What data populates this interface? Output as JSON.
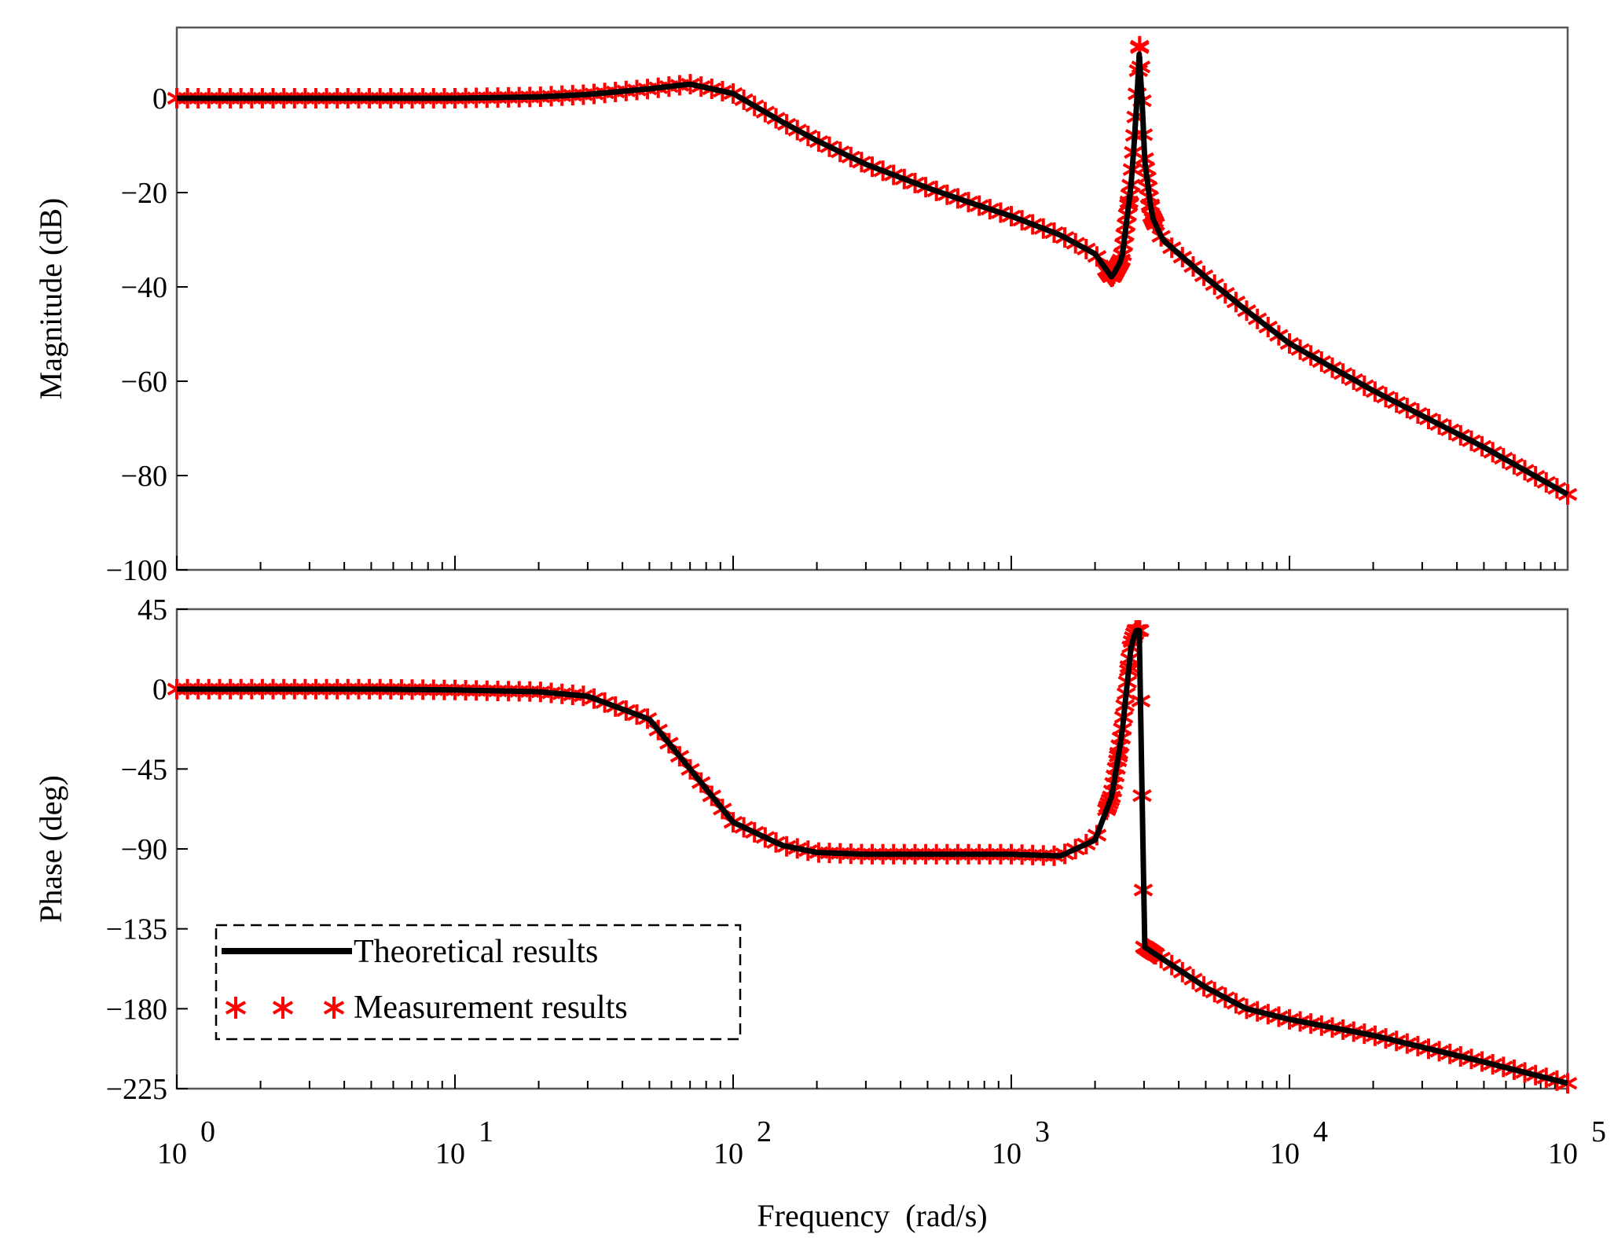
{
  "chart_data": {
    "type": "line",
    "title": "",
    "xlabel": "Frequency  (rad/s)",
    "xscale": "log",
    "xlim": [
      1,
      100000
    ],
    "x_ticks": [
      {
        "base": "10",
        "exp": "0"
      },
      {
        "base": "10",
        "exp": "1"
      },
      {
        "base": "10",
        "exp": "2"
      },
      {
        "base": "10",
        "exp": "3"
      },
      {
        "base": "10",
        "exp": "4"
      },
      {
        "base": "10",
        "exp": "5"
      }
    ],
    "legend": {
      "placement": "bottom-left",
      "entries": [
        "Theoretical results",
        "Measurement results"
      ]
    },
    "colors": {
      "theoretical": "#000000",
      "measured": "#ff0000"
    },
    "x": [
      1,
      2,
      5,
      10,
      20,
      30,
      50,
      70,
      100,
      150,
      200,
      300,
      500,
      700,
      1000,
      1500,
      2000,
      2300,
      2500,
      2700,
      2800,
      2900,
      3000,
      3200,
      3500,
      5000,
      7000,
      10000,
      20000,
      50000,
      100000
    ],
    "panels": [
      {
        "name": "magnitude",
        "ylabel": "Magnitude (dB)",
        "ylim": [
          -100,
          15
        ],
        "yticks": [
          "0",
          "−20",
          "−40",
          "−60",
          "−80",
          "−100"
        ],
        "ytick_values": [
          0,
          -20,
          -40,
          -60,
          -80,
          -100
        ],
        "series": [
          {
            "name": "Theoretical results",
            "values": [
              0,
              0,
              0,
              0,
              0.3,
              0.8,
              2,
              3,
              1,
              -5,
              -9,
              -14,
              -19,
              -22,
              -25,
              -29,
              -33,
              -38,
              -34,
              -18,
              -5,
              12,
              -12,
              -25,
              -30,
              -38,
              -45,
              -52,
              -62,
              -74,
              -84
            ]
          },
          {
            "name": "Measurement results",
            "values": [
              0,
              0,
              0,
              0,
              0.3,
              0.8,
              2,
              3,
              1,
              -5,
              -9,
              -14,
              -19,
              -22,
              -25,
              -29,
              -33,
              -38,
              -34,
              -18,
              -5,
              12,
              -12,
              -25,
              -30,
              -38,
              -45,
              -52,
              -62,
              -74,
              -84
            ]
          }
        ]
      },
      {
        "name": "phase",
        "ylabel": "Phase (deg)",
        "ylim": [
          -225,
          45
        ],
        "yticks": [
          "45",
          "0",
          "−45",
          "−90",
          "−135",
          "−180",
          "−225"
        ],
        "ytick_values": [
          45,
          0,
          -45,
          -90,
          -135,
          -180,
          -225
        ],
        "series": [
          {
            "name": "Theoretical results",
            "values": [
              0,
              0,
              0,
              -0.5,
              -1.5,
              -4,
              -17,
              -45,
              -75,
              -88,
              -92,
              -93,
              -93,
              -93,
              -93,
              -94,
              -85,
              -60,
              -25,
              25,
              33,
              33,
              -145,
              -148,
              -152,
              -168,
              -180,
              -186,
              -195,
              -210,
              -222
            ]
          },
          {
            "name": "Measurement results",
            "values": [
              0,
              0,
              0,
              -0.5,
              -1.5,
              -4,
              -17,
              -45,
              -75,
              -88,
              -92,
              -93,
              -93,
              -93,
              -93,
              -94,
              -85,
              -60,
              -25,
              25,
              33,
              33,
              -145,
              -148,
              -152,
              -168,
              -180,
              -186,
              -195,
              -210,
              -222
            ]
          }
        ]
      }
    ]
  }
}
